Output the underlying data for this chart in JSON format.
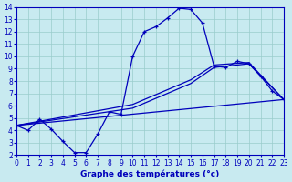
{
  "xlabel": "Graphe des températures (°c)",
  "bg_color": "#c8eaf0",
  "line_color": "#0000bb",
  "xlim": [
    0,
    23
  ],
  "ylim": [
    2,
    14
  ],
  "xticks": [
    0,
    1,
    2,
    3,
    4,
    5,
    6,
    7,
    8,
    9,
    10,
    11,
    12,
    13,
    14,
    15,
    16,
    17,
    18,
    19,
    20,
    21,
    22,
    23
  ],
  "yticks": [
    2,
    3,
    4,
    5,
    6,
    7,
    8,
    9,
    10,
    11,
    12,
    13,
    14
  ],
  "curve_main_x": [
    0,
    1,
    2,
    3,
    4,
    5,
    6,
    7,
    8,
    9,
    10,
    11,
    12,
    13,
    14,
    15,
    16,
    17,
    18,
    19,
    20,
    21,
    22,
    23
  ],
  "curve_main_y": [
    4.4,
    4.0,
    4.9,
    4.1,
    3.1,
    2.2,
    2.2,
    3.7,
    5.5,
    5.3,
    10.0,
    12.0,
    12.4,
    13.1,
    13.9,
    13.8,
    12.7,
    9.2,
    9.1,
    9.6,
    9.4,
    8.4,
    7.2,
    6.5
  ],
  "trend1_x": [
    0,
    10,
    15,
    17,
    20,
    23
  ],
  "trend1_y": [
    4.4,
    5.8,
    7.8,
    9.1,
    9.4,
    6.5
  ],
  "trend2_x": [
    0,
    10,
    15,
    17,
    20,
    23
  ],
  "trend2_y": [
    4.4,
    6.1,
    8.1,
    9.3,
    9.5,
    6.5
  ],
  "trend3_x": [
    0,
    23
  ],
  "trend3_y": [
    4.4,
    6.5
  ]
}
